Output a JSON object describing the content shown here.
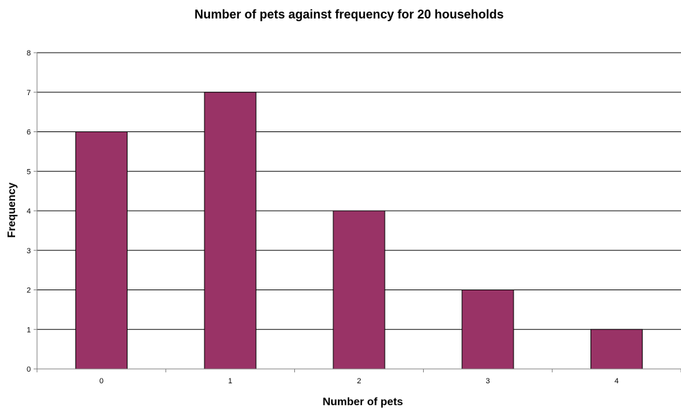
{
  "chart_data": {
    "type": "bar",
    "title": "Number of pets against frequency for 20 households",
    "xlabel": "Number of pets",
    "ylabel": "Frequency",
    "categories": [
      "0",
      "1",
      "2",
      "3",
      "4"
    ],
    "series": [
      {
        "values": [
          6,
          7,
          4,
          2,
          1
        ]
      }
    ],
    "ylim": [
      0,
      8
    ],
    "yticks": [
      "0",
      "1",
      "2",
      "3",
      "4",
      "5",
      "6",
      "7",
      "8"
    ],
    "grid": true,
    "legend": "none",
    "colors": {
      "bar": "#993366",
      "bar_outline": "#000000",
      "grid": "#000000",
      "axis": "#808080"
    }
  }
}
